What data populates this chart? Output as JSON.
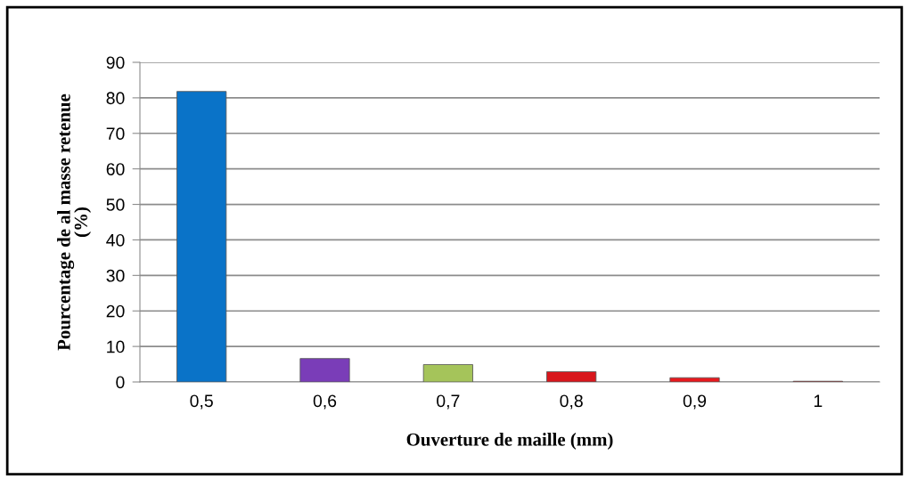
{
  "chart_data": {
    "type": "bar",
    "xlabel": "Ouverture de maille (mm)",
    "ylabel": "Pourcentage de al masse retenue\n(%)",
    "categories": [
      "0,5",
      "0,6",
      "0,7",
      "0,8",
      "0,9",
      "1"
    ],
    "values": [
      81.8,
      6.6,
      4.9,
      2.9,
      1.2,
      0.2
    ],
    "colors": [
      "#0a73c8",
      "#7a3db8",
      "#a5c45a",
      "#d8161c",
      "#e8191e",
      "#e8191e"
    ],
    "ylim": [
      0,
      90
    ],
    "yticks": [
      0,
      10,
      20,
      30,
      40,
      50,
      60,
      70,
      80,
      90
    ],
    "grid": "y"
  }
}
